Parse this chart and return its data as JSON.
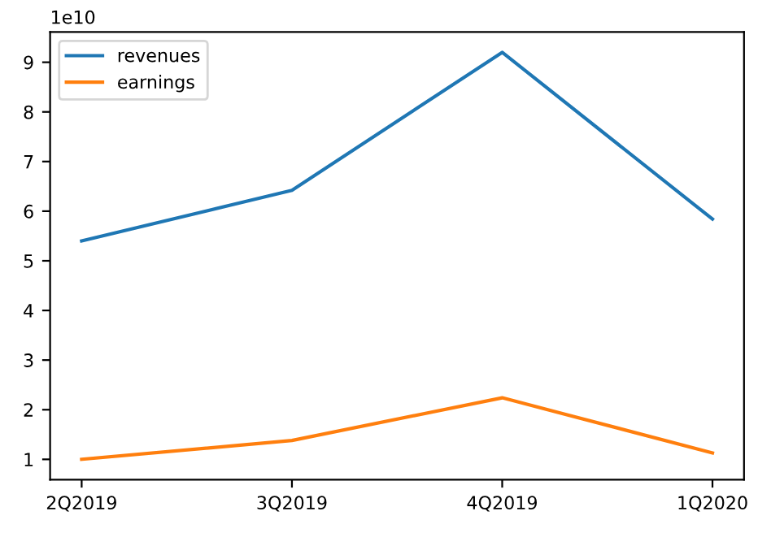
{
  "chart_data": {
    "type": "line",
    "categories": [
      "2Q2019",
      "3Q2019",
      "4Q2019",
      "1Q2020"
    ],
    "series": [
      {
        "name": "revenues",
        "color": "#1f77b4",
        "values": [
          5.4,
          6.42,
          9.2,
          5.84
        ]
      },
      {
        "name": "earnings",
        "color": "#ff7f0e",
        "values": [
          1.0,
          1.38,
          2.24,
          1.13
        ]
      }
    ],
    "ylim": [
      0.59,
      9.61
    ],
    "yticks": [
      1,
      2,
      3,
      4,
      5,
      6,
      7,
      8,
      9
    ],
    "annotations": [
      "1e10"
    ],
    "legend": "top left",
    "grid": false,
    "marker": "none",
    "line_style": "solid"
  }
}
